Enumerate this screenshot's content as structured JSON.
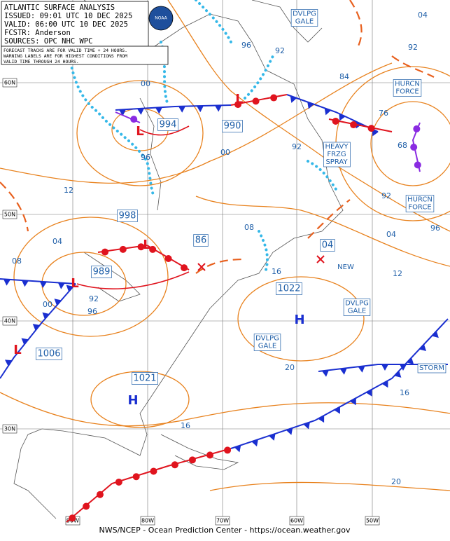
{
  "header": {
    "title": "ATLANTIC SURFACE ANALYSIS",
    "issued": "ISSUED: 09:01 UTC 10 DEC 2025",
    "valid": "VALID:  06:00 UTC 10 DEC 2025",
    "forecaster": "FCSTR:  Anderson",
    "sources": "SOURCES: OPC NHC WPC",
    "note_lines": [
      "FORECAST TRACKS ARE FOR VALID TIME + 24 HOURS.",
      "WARNING LABELS ARE FOR HIGHEST CONDITIONS FROM",
      "VALID TIME THROUGH 24 HOURS."
    ],
    "logo": "NOAA"
  },
  "pressure_centers": [
    {
      "symbol": "L",
      "pressure": "994"
    },
    {
      "symbol": "L",
      "pressure": "990"
    },
    {
      "symbol": "L",
      "pressure": "998"
    },
    {
      "symbol": "L",
      "pressure": "989"
    },
    {
      "symbol": "L",
      "pressure": "1006"
    },
    {
      "symbol": "H",
      "pressure": "1022"
    },
    {
      "symbol": "H",
      "pressure": "1021"
    },
    {
      "symbol": "L",
      "pressure": "86"
    },
    {
      "symbol": "L",
      "pressure": "04"
    }
  ],
  "warnings": [
    {
      "lines": [
        "DVLPG",
        "GALE"
      ]
    },
    {
      "lines": [
        "HURCN",
        "FORCE"
      ]
    },
    {
      "lines": [
        "HEAVY",
        "FRZG",
        "SPRAY"
      ]
    },
    {
      "lines": [
        "HURCN",
        "FORCE"
      ]
    },
    {
      "lines": [
        "DVLPG",
        "GALE"
      ]
    },
    {
      "lines": [
        "DVLPG",
        "GALE"
      ]
    },
    {
      "lines": [
        "STORM"
      ]
    },
    {
      "lines": [
        "NEW"
      ]
    }
  ],
  "isobar_labels": [
    "96",
    "92",
    "04",
    "92",
    "84",
    "00",
    "76",
    "68",
    "00",
    "92",
    "96",
    "12",
    "92",
    "08",
    "04",
    "96",
    "04",
    "08",
    "12",
    "16",
    "00",
    "92",
    "96",
    "20",
    "16",
    "16",
    "20"
  ],
  "latitude_labels": [
    "60N",
    "50N",
    "40N",
    "30N"
  ],
  "longitude_labels": [
    "90W",
    "80W",
    "70W",
    "60W",
    "50W"
  ],
  "footer": "NWS/NCEP - Ocean Prediction Center - https://ocean.weather.gov"
}
